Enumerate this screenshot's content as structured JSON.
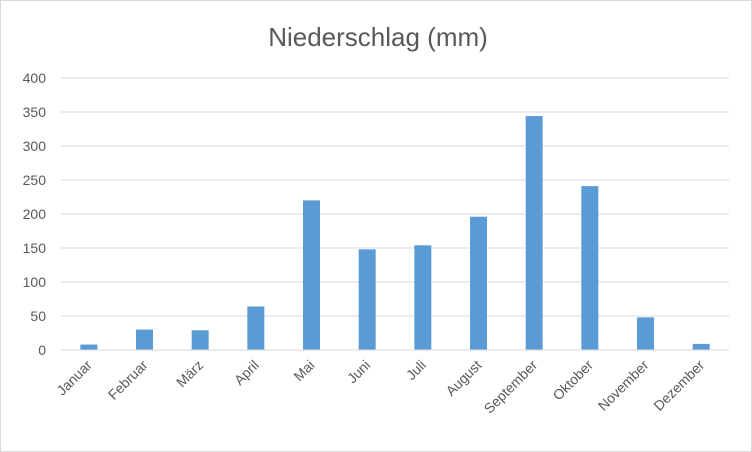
{
  "chart_data": {
    "type": "bar",
    "title": "Niederschlag (mm)",
    "xlabel": "",
    "ylabel": "",
    "categories": [
      "Januar",
      "Februar",
      "März",
      "April",
      "Mai",
      "Juni",
      "Juli",
      "August",
      "September",
      "Oktober",
      "November",
      "Dezember"
    ],
    "series": [
      {
        "values": [
          8,
          30,
          29,
          64,
          220,
          148,
          154,
          196,
          344,
          241,
          48,
          9
        ]
      }
    ],
    "ylim": [
      0,
      400
    ],
    "yticks": [
      "0",
      "50",
      "100",
      "150",
      "200",
      "250",
      "300",
      "350",
      "400"
    ],
    "grid": true,
    "legend": "none",
    "colors": {
      "bar": "#5b9bd5",
      "grid": "#d9d9d9",
      "text": "#595959"
    }
  }
}
